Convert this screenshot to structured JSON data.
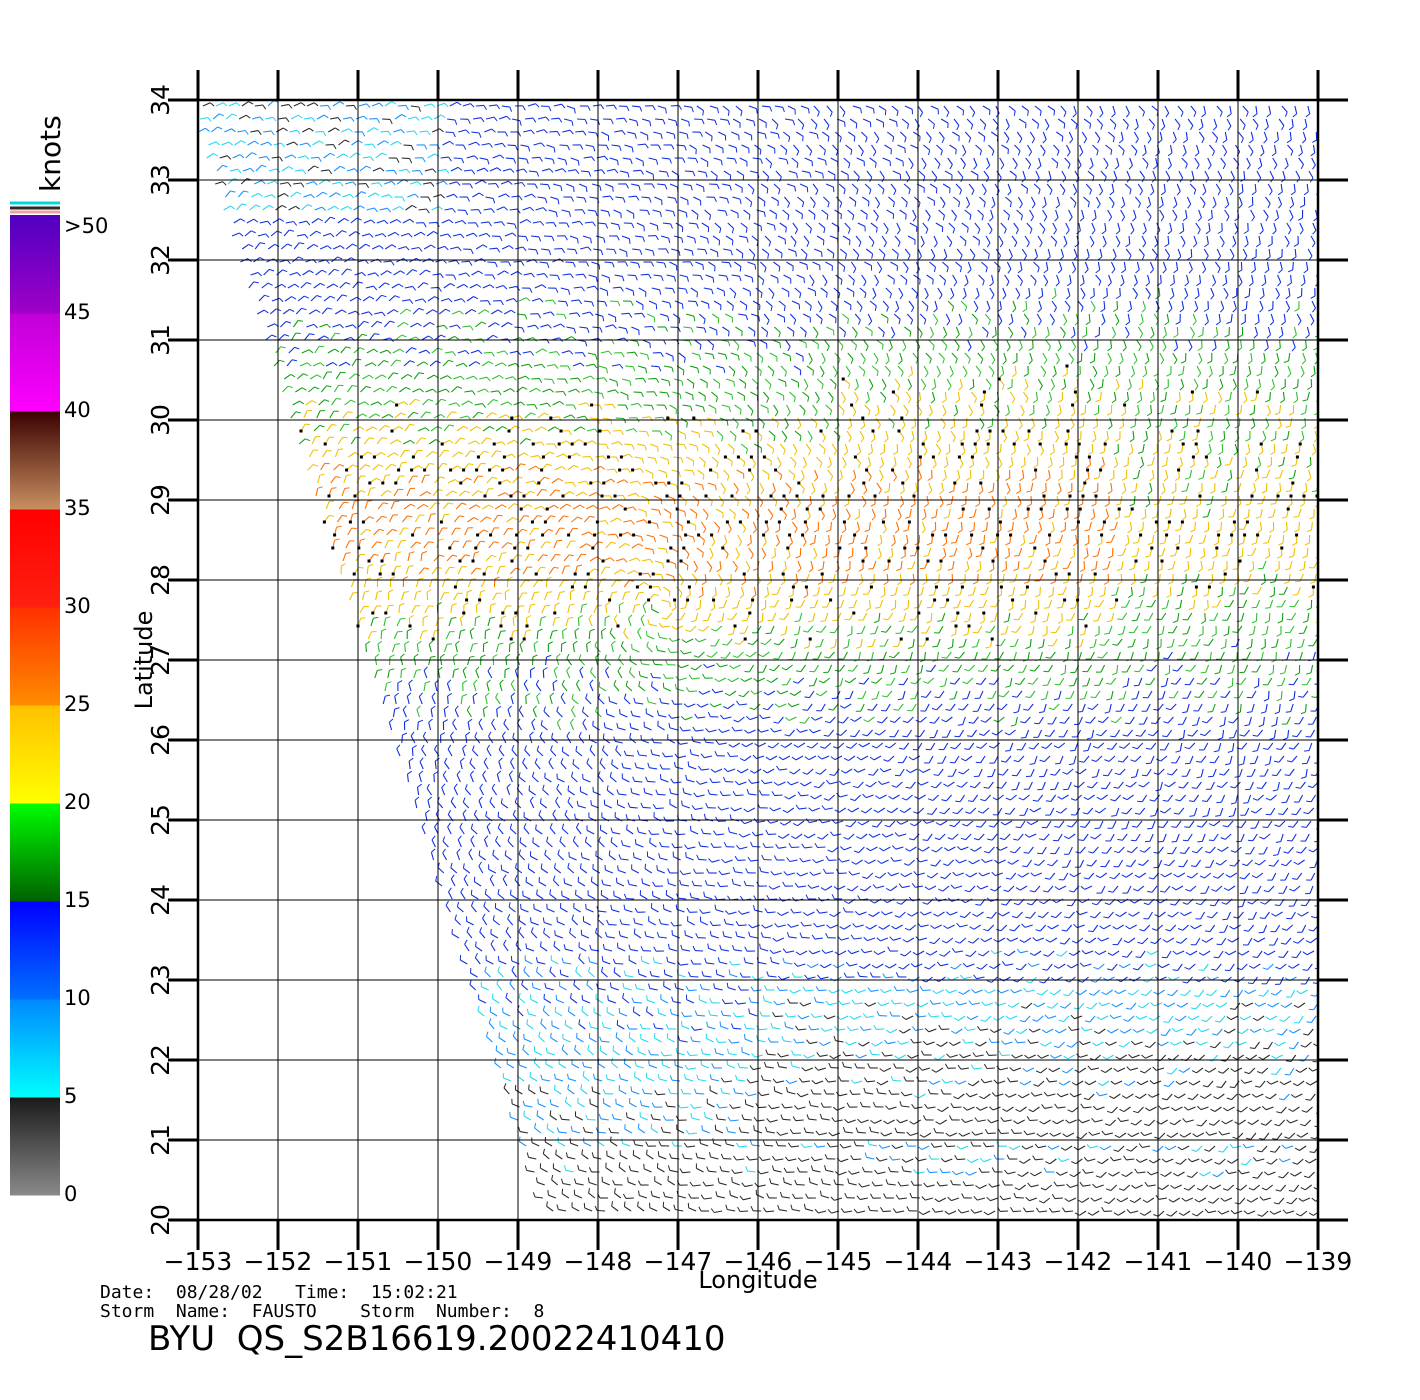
{
  "map": {
    "x_axis_label": "Longitude",
    "y_axis_label": "Latitude",
    "lon_ticks": [
      "−153",
      "−152",
      "−151",
      "−150",
      "−149",
      "−148",
      "−147",
      "−146",
      "−145",
      "−144",
      "−143",
      "−142",
      "−141",
      "−140",
      "−139"
    ],
    "lat_ticks": [
      "34",
      "33",
      "32",
      "31",
      "30",
      "29",
      "28",
      "27",
      "26",
      "25",
      "24",
      "23",
      "22",
      "21",
      "20"
    ],
    "lon_range": [
      -153,
      -139
    ],
    "lat_range": [
      20,
      34
    ],
    "swath_edge_note": "data coverage only east of the slanted swath boundary"
  },
  "colorbar": {
    "unit_label": "knots",
    "tick_labels": [
      ">50",
      "45",
      "40",
      "35",
      "30",
      "25",
      "20",
      "15",
      "10",
      "5",
      "0"
    ],
    "bands": [
      {
        "min": 0,
        "max": 5,
        "from": "#8a8a8a",
        "to": "#1a1a1a"
      },
      {
        "min": 5,
        "max": 10,
        "from": "#00ffff",
        "to": "#0088ff"
      },
      {
        "min": 10,
        "max": 15,
        "from": "#0070ff",
        "to": "#0000ff"
      },
      {
        "min": 15,
        "max": 20,
        "from": "#006000",
        "to": "#00ff00"
      },
      {
        "min": 20,
        "max": 25,
        "from": "#ffff00",
        "to": "#ffc000"
      },
      {
        "min": 25,
        "max": 30,
        "from": "#ff8c00",
        "to": "#ff3000"
      },
      {
        "min": 30,
        "max": 35,
        "from": "#ff2010",
        "to": "#ff0000"
      },
      {
        "min": 35,
        "max": 40,
        "from": "#c89060",
        "to": "#3a0000"
      },
      {
        "min": 40,
        "max": 45,
        "from": "#ff00ff",
        "to": "#c000d8"
      },
      {
        "min": 45,
        "max": 50,
        "from": "#a000c8",
        "to": "#5000c0"
      }
    ]
  },
  "info": {
    "date_line": "Date:  08/28/02   Time:  15:02:21",
    "storm_line": "Storm  Name:  FAUSTO    Storm  Number:  8",
    "product_id": "BYU  QS_S2B16619.20022410410"
  }
}
